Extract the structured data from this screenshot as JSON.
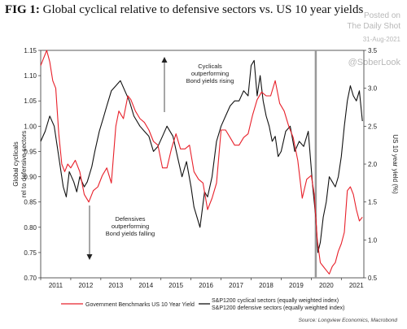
{
  "title": {
    "fig": "FIG 1:",
    "text": "Global cyclical relative to defensive sectors vs. US 10 year yields"
  },
  "watermark": {
    "line1": "Posted on",
    "line2": "The Daily Shot",
    "line3": "31-Aug-2021",
    "handle": "@SoberLook"
  },
  "source": "Source: Longview Economics, Macrobond",
  "colors": {
    "ratio": "#111111",
    "yield": "#e8202a",
    "divider": "#999999",
    "axis": "#333333"
  },
  "chart_data": {
    "type": "line",
    "left_axis": {
      "label": "Global cyclicals\nrel to defensive sectors",
      "range": [
        0.7,
        1.15
      ],
      "ticks": [
        "0.70",
        "0.75",
        "0.80",
        "0.85",
        "0.90",
        "0.95",
        "1.00",
        "1.05",
        "1.10",
        "1.15"
      ]
    },
    "right_axis": {
      "label": "US 10 year yield (%)",
      "range": [
        0.5,
        3.5
      ],
      "ticks": [
        "0.5",
        "1.0",
        "1.5",
        "2.0",
        "2.5",
        "3.0",
        "3.5"
      ]
    },
    "x_axis": {
      "range": [
        2011.0,
        2021.75
      ],
      "ticks": [
        "2011",
        "2012",
        "2013",
        "2014",
        "2015",
        "2016",
        "2017",
        "2018",
        "2019",
        "2020",
        "2021"
      ]
    },
    "legend": {
      "yield_label": "Government Benchmarks US 10 Year Yield",
      "ratio_label_1": "S&P1200 cyclical sectors (equally weighted index)",
      "ratio_label_2": "S&P1200 defensive sectors (equally weighted index)"
    },
    "annotations": {
      "up": "Cyclicals\noutperforming\nBond yields rising",
      "down": "Defensives\noutperforming\nBond yields falling"
    },
    "divider_x": 2020.15,
    "series": [
      {
        "name": "S&P1200 cyclical sectors (equally weighted index) / S&P1200 defensive sectors (equally weighted index)",
        "axis": "left",
        "x": [
          2011.0,
          2011.15,
          2011.3,
          2011.45,
          2011.55,
          2011.65,
          2011.75,
          2011.85,
          2011.95,
          2012.1,
          2012.2,
          2012.3,
          2012.45,
          2012.55,
          2012.7,
          2012.8,
          2012.95,
          2013.1,
          2013.2,
          2013.35,
          2013.5,
          2013.65,
          2013.8,
          2013.95,
          2014.1,
          2014.3,
          2014.45,
          2014.6,
          2014.75,
          2014.9,
          2015.05,
          2015.2,
          2015.4,
          2015.55,
          2015.7,
          2015.85,
          2016.0,
          2016.1,
          2016.2,
          2016.3,
          2016.45,
          2016.55,
          2016.7,
          2016.85,
          2017.0,
          2017.15,
          2017.3,
          2017.45,
          2017.6,
          2017.75,
          2017.9,
          2018.0,
          2018.1,
          2018.2,
          2018.3,
          2018.4,
          2018.5,
          2018.6,
          2018.7,
          2018.8,
          2018.9,
          2019.0,
          2019.15,
          2019.3,
          2019.45,
          2019.6,
          2019.75,
          2019.9,
          2020.05,
          2020.15,
          2020.22,
          2020.3,
          2020.4,
          2020.5,
          2020.6,
          2020.7,
          2020.8,
          2020.9,
          2021.0,
          2021.1,
          2021.2,
          2021.3,
          2021.4,
          2021.5,
          2021.6,
          2021.7
        ],
        "y": [
          0.97,
          0.99,
          1.02,
          1.0,
          0.96,
          0.92,
          0.88,
          0.86,
          0.91,
          0.89,
          0.87,
          0.9,
          0.88,
          0.89,
          0.92,
          0.95,
          0.99,
          1.02,
          1.04,
          1.07,
          1.08,
          1.09,
          1.07,
          1.05,
          1.02,
          1.0,
          0.99,
          0.98,
          0.95,
          0.96,
          0.98,
          1.0,
          0.98,
          0.94,
          0.9,
          0.93,
          0.88,
          0.84,
          0.82,
          0.8,
          0.87,
          0.86,
          0.9,
          0.97,
          1.0,
          1.02,
          1.04,
          1.05,
          1.05,
          1.07,
          1.06,
          1.12,
          1.13,
          1.06,
          1.1,
          1.05,
          1.02,
          1.0,
          0.97,
          0.98,
          0.94,
          0.95,
          0.99,
          1.0,
          0.95,
          0.97,
          0.96,
          0.99,
          0.88,
          0.82,
          0.75,
          0.77,
          0.82,
          0.85,
          0.9,
          0.89,
          0.88,
          0.9,
          0.94,
          1.0,
          1.05,
          1.08,
          1.06,
          1.05,
          1.07,
          1.01
        ]
      },
      {
        "name": "Government Benchmarks US 10 Year Yield",
        "axis": "right",
        "x": [
          2011.0,
          2011.1,
          2011.2,
          2011.3,
          2011.4,
          2011.5,
          2011.6,
          2011.7,
          2011.8,
          2011.9,
          2012.0,
          2012.15,
          2012.3,
          2012.45,
          2012.6,
          2012.75,
          2012.9,
          2013.05,
          2013.2,
          2013.35,
          2013.5,
          2013.6,
          2013.75,
          2013.9,
          2014.0,
          2014.15,
          2014.3,
          2014.45,
          2014.6,
          2014.75,
          2014.9,
          2015.05,
          2015.2,
          2015.35,
          2015.5,
          2015.65,
          2015.8,
          2015.95,
          2016.1,
          2016.25,
          2016.4,
          2016.55,
          2016.7,
          2016.85,
          2017.0,
          2017.15,
          2017.3,
          2017.45,
          2017.6,
          2017.75,
          2017.9,
          2018.05,
          2018.2,
          2018.35,
          2018.5,
          2018.65,
          2018.8,
          2018.95,
          2019.1,
          2019.25,
          2019.4,
          2019.55,
          2019.7,
          2019.85,
          2020.0,
          2020.1,
          2020.2,
          2020.3,
          2020.4,
          2020.5,
          2020.6,
          2020.7,
          2020.8,
          2020.9,
          2021.0,
          2021.1,
          2021.2,
          2021.3,
          2021.4,
          2021.5,
          2021.6,
          2021.7
        ],
        "y": [
          3.3,
          3.4,
          3.5,
          3.35,
          3.1,
          3.0,
          2.4,
          2.0,
          1.9,
          2.0,
          1.95,
          2.05,
          1.9,
          1.6,
          1.5,
          1.65,
          1.7,
          1.85,
          1.95,
          1.75,
          2.5,
          2.7,
          2.6,
          2.9,
          2.85,
          2.7,
          2.6,
          2.55,
          2.45,
          2.3,
          2.25,
          1.95,
          1.95,
          2.2,
          2.4,
          2.2,
          2.2,
          2.25,
          1.9,
          1.8,
          1.75,
          1.4,
          1.55,
          1.75,
          2.45,
          2.45,
          2.35,
          2.25,
          2.25,
          2.35,
          2.4,
          2.65,
          2.85,
          2.95,
          2.9,
          2.9,
          3.1,
          2.8,
          2.7,
          2.5,
          2.35,
          2.05,
          1.55,
          1.8,
          1.85,
          1.6,
          1.0,
          0.7,
          0.65,
          0.6,
          0.55,
          0.65,
          0.7,
          0.85,
          0.95,
          1.1,
          1.65,
          1.7,
          1.6,
          1.4,
          1.25,
          1.3
        ]
      }
    ]
  }
}
